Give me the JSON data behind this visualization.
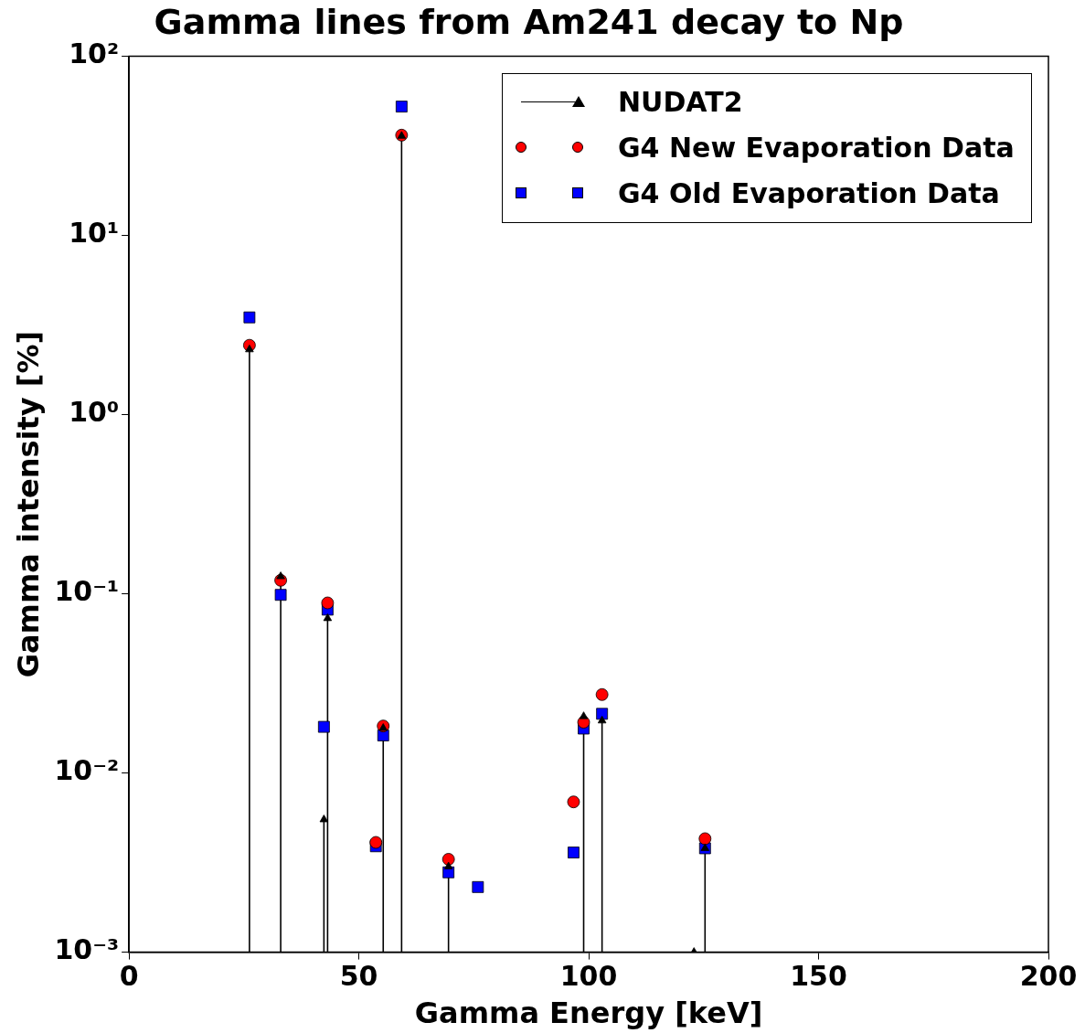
{
  "chart_data": {
    "type": "scatter",
    "title": "Gamma lines from Am241 decay to Np",
    "xlabel": "Gamma Energy [keV]",
    "ylabel": "Gamma intensity [%]",
    "log": "y",
    "grid": false,
    "legend": "top right",
    "xlim": [
      0,
      200
    ],
    "xticks": [
      0,
      50,
      100,
      150,
      200
    ],
    "ylim": [
      0.001,
      100
    ],
    "yticks": [
      {
        "value": 0.001,
        "label": "10⁻³"
      },
      {
        "value": 0.01,
        "label": "10⁻²"
      },
      {
        "value": 0.1,
        "label": "10⁻¹"
      },
      {
        "value": 1,
        "label": "10⁰"
      },
      {
        "value": 10,
        "label": "10¹"
      },
      {
        "value": 100,
        "label": "10²"
      }
    ],
    "series": [
      {
        "name": "NUDAT2",
        "type": "lollipop",
        "color": "#000000",
        "marker": "triangle",
        "x": [
          26.2,
          33.0,
          42.4,
          43.2,
          55.3,
          59.3,
          69.5,
          98.9,
          102.9,
          122.9,
          125.3
        ],
        "values": [
          2.31,
          0.125,
          0.0055,
          0.073,
          0.0178,
          35.9,
          0.003,
          0.0207,
          0.0196,
          0.001,
          0.0038
        ]
      },
      {
        "name": "G4 New Evaporation Data",
        "color": "#ff0000",
        "marker": "circle",
        "x": [
          26.2,
          33.0,
          43.2,
          53.7,
          55.3,
          59.3,
          69.5,
          96.7,
          98.9,
          102.9,
          125.3
        ],
        "values": [
          2.44,
          0.119,
          0.089,
          0.0041,
          0.0183,
          36.3,
          0.0033,
          0.0069,
          0.0192,
          0.0274,
          0.0043
        ]
      },
      {
        "name": "G4 Old Evaporation Data",
        "color": "#0000ff",
        "marker": "square",
        "x": [
          26.2,
          33.0,
          42.4,
          43.2,
          53.7,
          55.3,
          59.3,
          69.5,
          75.9,
          96.7,
          98.9,
          102.9,
          125.3
        ],
        "values": [
          3.49,
          0.0987,
          0.0181,
          0.0816,
          0.0039,
          0.0162,
          52.4,
          0.00279,
          0.00231,
          0.0036,
          0.0177,
          0.0214,
          0.0038
        ]
      }
    ]
  }
}
